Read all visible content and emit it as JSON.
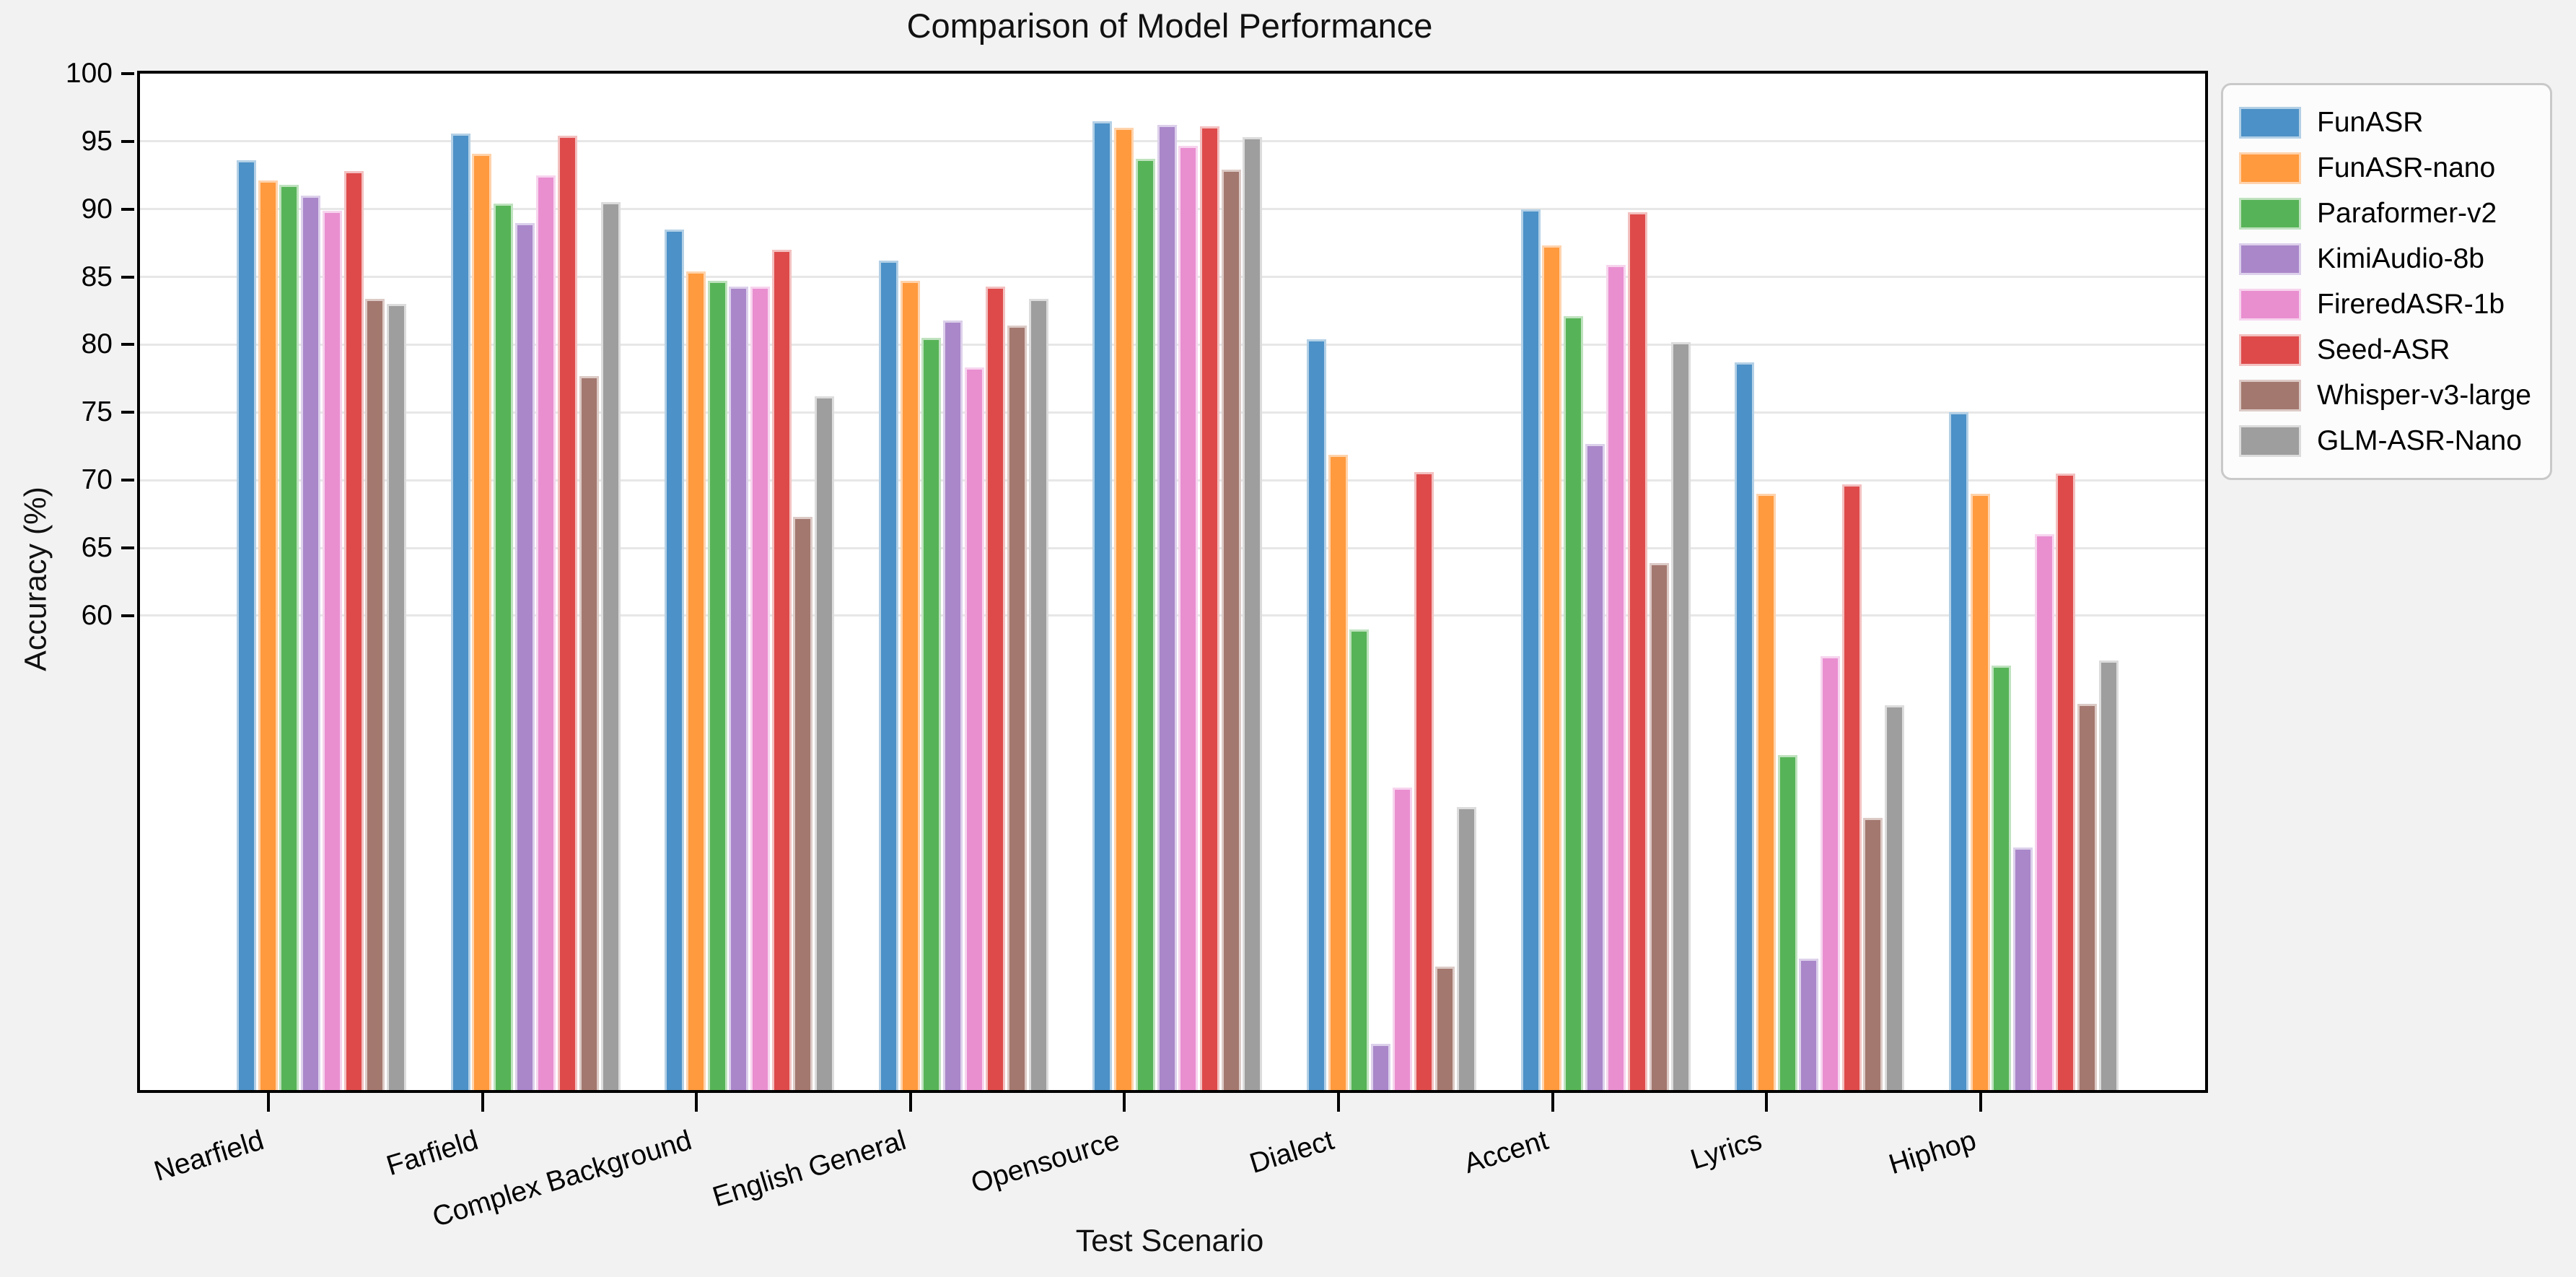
{
  "figure": {
    "background": "#f2f2f3",
    "plot_background": "#ffffff",
    "grid_color": "#e7e7e7",
    "spine_color": "#000000"
  },
  "chart_data": {
    "type": "bar",
    "title": "Comparison of Model Performance",
    "xlabel": "Test Scenario",
    "ylabel": "Accuracy (%)",
    "ylim": [
      25,
      100
    ],
    "yticks": [
      100,
      95,
      90,
      85,
      80,
      75,
      70,
      65,
      60
    ],
    "grid": "horizontal gridlines at yticks",
    "legend_position": "outside upper right",
    "categories": [
      "Nearfield",
      "Farfield",
      "Complex Background",
      "English General",
      "Opensource",
      "Dialect",
      "Accent",
      "Lyrics",
      "Hiphop"
    ],
    "series": [
      {
        "name": "FunASR",
        "color": "#4C91C7",
        "edge": "#B3D0E6",
        "values": [
          93.6,
          95.6,
          88.5,
          86.2,
          96.5,
          80.4,
          90.0,
          78.7,
          75.0
        ]
      },
      {
        "name": "FunASR-nano",
        "color": "#FF9A3E",
        "edge": "#FFD3AC",
        "values": [
          92.1,
          94.1,
          85.4,
          84.7,
          96.0,
          71.9,
          87.3,
          69.0,
          69.0
        ]
      },
      {
        "name": "Paraformer-v2",
        "color": "#57B357",
        "edge": "#BFE2BF",
        "values": [
          91.8,
          90.4,
          84.7,
          80.5,
          93.7,
          59.0,
          82.1,
          49.7,
          56.3
        ]
      },
      {
        "name": "KimiAudio-8b",
        "color": "#A987C9",
        "edge": "#DCD0EB",
        "values": [
          91.0,
          89.0,
          84.3,
          81.8,
          96.2,
          28.4,
          72.7,
          34.7,
          42.9
        ]
      },
      {
        "name": "FireredASR-1b",
        "color": "#E98FD0",
        "edge": "#F7D4EE",
        "values": [
          89.9,
          92.5,
          84.3,
          78.3,
          94.7,
          47.3,
          85.9,
          57.0,
          66.0
        ]
      },
      {
        "name": "Seed-ASR",
        "color": "#DE4A4A",
        "edge": "#F3C0C0",
        "values": [
          92.8,
          95.4,
          87.0,
          84.3,
          96.1,
          70.6,
          89.8,
          69.7,
          70.5
        ]
      },
      {
        "name": "Whisper-v3-large",
        "color": "#A3786F",
        "edge": "#DCCAC6",
        "values": [
          83.4,
          77.7,
          67.3,
          81.4,
          92.9,
          34.1,
          63.9,
          45.1,
          53.5
        ]
      },
      {
        "name": "GLM-ASR-Nano",
        "color": "#9E9E9E",
        "edge": "#DCDCDC",
        "values": [
          83.0,
          90.5,
          76.2,
          83.4,
          95.3,
          45.9,
          80.2,
          53.4,
          56.7
        ]
      }
    ]
  }
}
